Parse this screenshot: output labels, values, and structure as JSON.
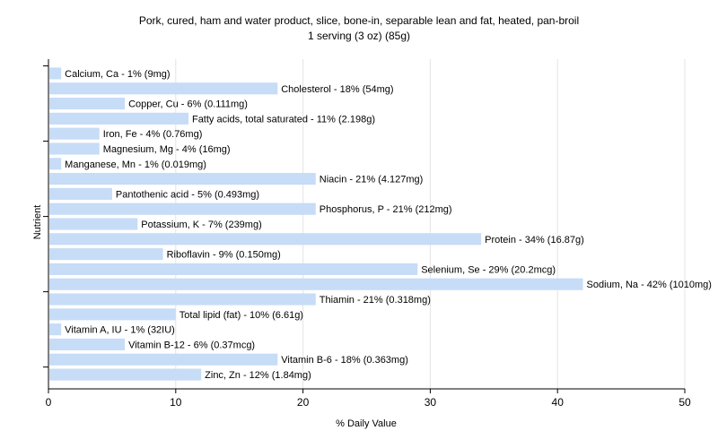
{
  "chart_data": {
    "type": "bar",
    "orientation": "horizontal",
    "title": "Pork, cured, ham and water product, slice, bone-in, separable lean and fat, heated, pan-broil",
    "subtitle": "1 serving (3 oz) (85g)",
    "xlabel": "% Daily Value",
    "ylabel": "Nutrient",
    "xlim": [
      0,
      50
    ],
    "xticks": [
      0,
      10,
      20,
      30,
      40,
      50
    ],
    "grid": true,
    "bar_color": "#c6dcf7",
    "grid_color": "#e4e4e4",
    "categories": [
      "Calcium, Ca",
      "Cholesterol",
      "Copper, Cu",
      "Fatty acids, total saturated",
      "Iron, Fe",
      "Magnesium, Mg",
      "Manganese, Mn",
      "Niacin",
      "Pantothenic acid",
      "Phosphorus, P",
      "Potassium, K",
      "Protein",
      "Riboflavin",
      "Selenium, Se",
      "Sodium, Na",
      "Thiamin",
      "Total lipid (fat)",
      "Vitamin A, IU",
      "Vitamin B-12",
      "Vitamin B-6",
      "Zinc, Zn"
    ],
    "values": [
      1,
      18,
      6,
      11,
      4,
      4,
      1,
      21,
      5,
      21,
      7,
      34,
      9,
      29,
      42,
      21,
      10,
      1,
      6,
      18,
      12
    ],
    "labels": [
      "Calcium, Ca - 1% (9mg)",
      "Cholesterol - 18% (54mg)",
      "Copper, Cu - 6% (0.111mg)",
      "Fatty acids, total saturated - 11% (2.198g)",
      "Iron, Fe - 4% (0.76mg)",
      "Magnesium, Mg - 4% (16mg)",
      "Manganese, Mn - 1% (0.019mg)",
      "Niacin - 21% (4.127mg)",
      "Pantothenic acid - 5% (0.493mg)",
      "Phosphorus, P - 21% (212mg)",
      "Potassium, K - 7% (239mg)",
      "Protein - 34% (16.87g)",
      "Riboflavin - 9% (0.150mg)",
      "Selenium, Se - 29% (20.2mcg)",
      "Sodium, Na - 42% (1010mg)",
      "Thiamin - 21% (0.318mg)",
      "Total lipid (fat) - 10% (6.61g)",
      "Vitamin A, IU - 1% (32IU)",
      "Vitamin B-12 - 6% (0.37mcg)",
      "Vitamin B-6 - 18% (0.363mg)",
      "Zinc, Zn - 12% (1.84mg)"
    ]
  }
}
